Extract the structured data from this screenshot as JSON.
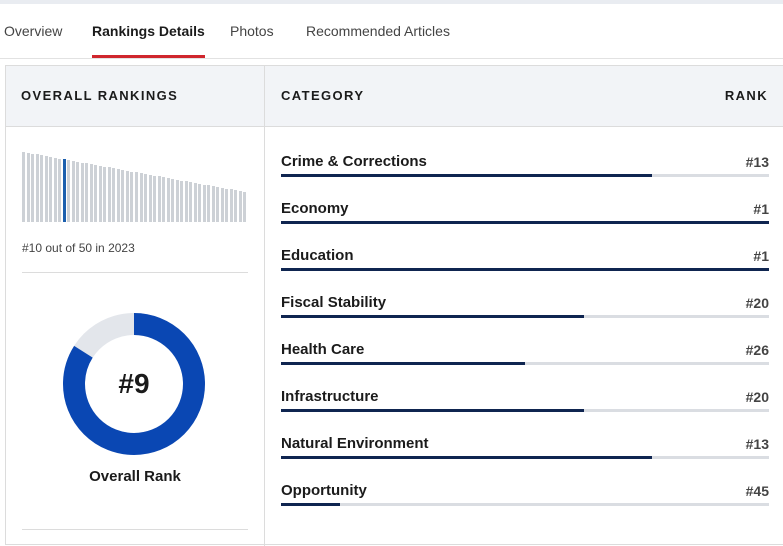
{
  "tabs": [
    {
      "label": "Overview",
      "active": false
    },
    {
      "label": "Rankings Details",
      "active": true
    },
    {
      "label": "Photos",
      "active": false
    },
    {
      "label": "Recommended Articles",
      "active": false
    }
  ],
  "overall": {
    "header": "OVERALL RANKINGS",
    "trend_caption": "#10 out of 50 in 2023",
    "trend_highlight_rank": 10,
    "trend_total": 50,
    "rank_label": "#9",
    "rank_caption": "Overall Rank",
    "rank_value": 9,
    "rank_total": 50
  },
  "categories": {
    "header_category": "CATEGORY",
    "header_rank": "RANK",
    "total": 50,
    "items": [
      {
        "name": "Crime & Corrections",
        "rank": "#13",
        "rank_value": 13
      },
      {
        "name": "Economy",
        "rank": "#1",
        "rank_value": 1
      },
      {
        "name": "Education",
        "rank": "#1",
        "rank_value": 1
      },
      {
        "name": "Fiscal Stability",
        "rank": "#20",
        "rank_value": 20
      },
      {
        "name": "Health Care",
        "rank": "#26",
        "rank_value": 26
      },
      {
        "name": "Infrastructure",
        "rank": "#20",
        "rank_value": 20
      },
      {
        "name": "Natural Environment",
        "rank": "#13",
        "rank_value": 13
      },
      {
        "name": "Opportunity",
        "rank": "#45",
        "rank_value": 45
      }
    ]
  },
  "colors": {
    "tab_active_underline": "#d0262d",
    "bar_fill": "#0f2550",
    "bar_track": "#dadde2",
    "donut_fill": "#0a47b3",
    "donut_track": "#e3e6eb",
    "trend_highlight": "#1b5fae",
    "trend_bar": "#cdd1d6",
    "header_bg": "#f2f4f7"
  }
}
